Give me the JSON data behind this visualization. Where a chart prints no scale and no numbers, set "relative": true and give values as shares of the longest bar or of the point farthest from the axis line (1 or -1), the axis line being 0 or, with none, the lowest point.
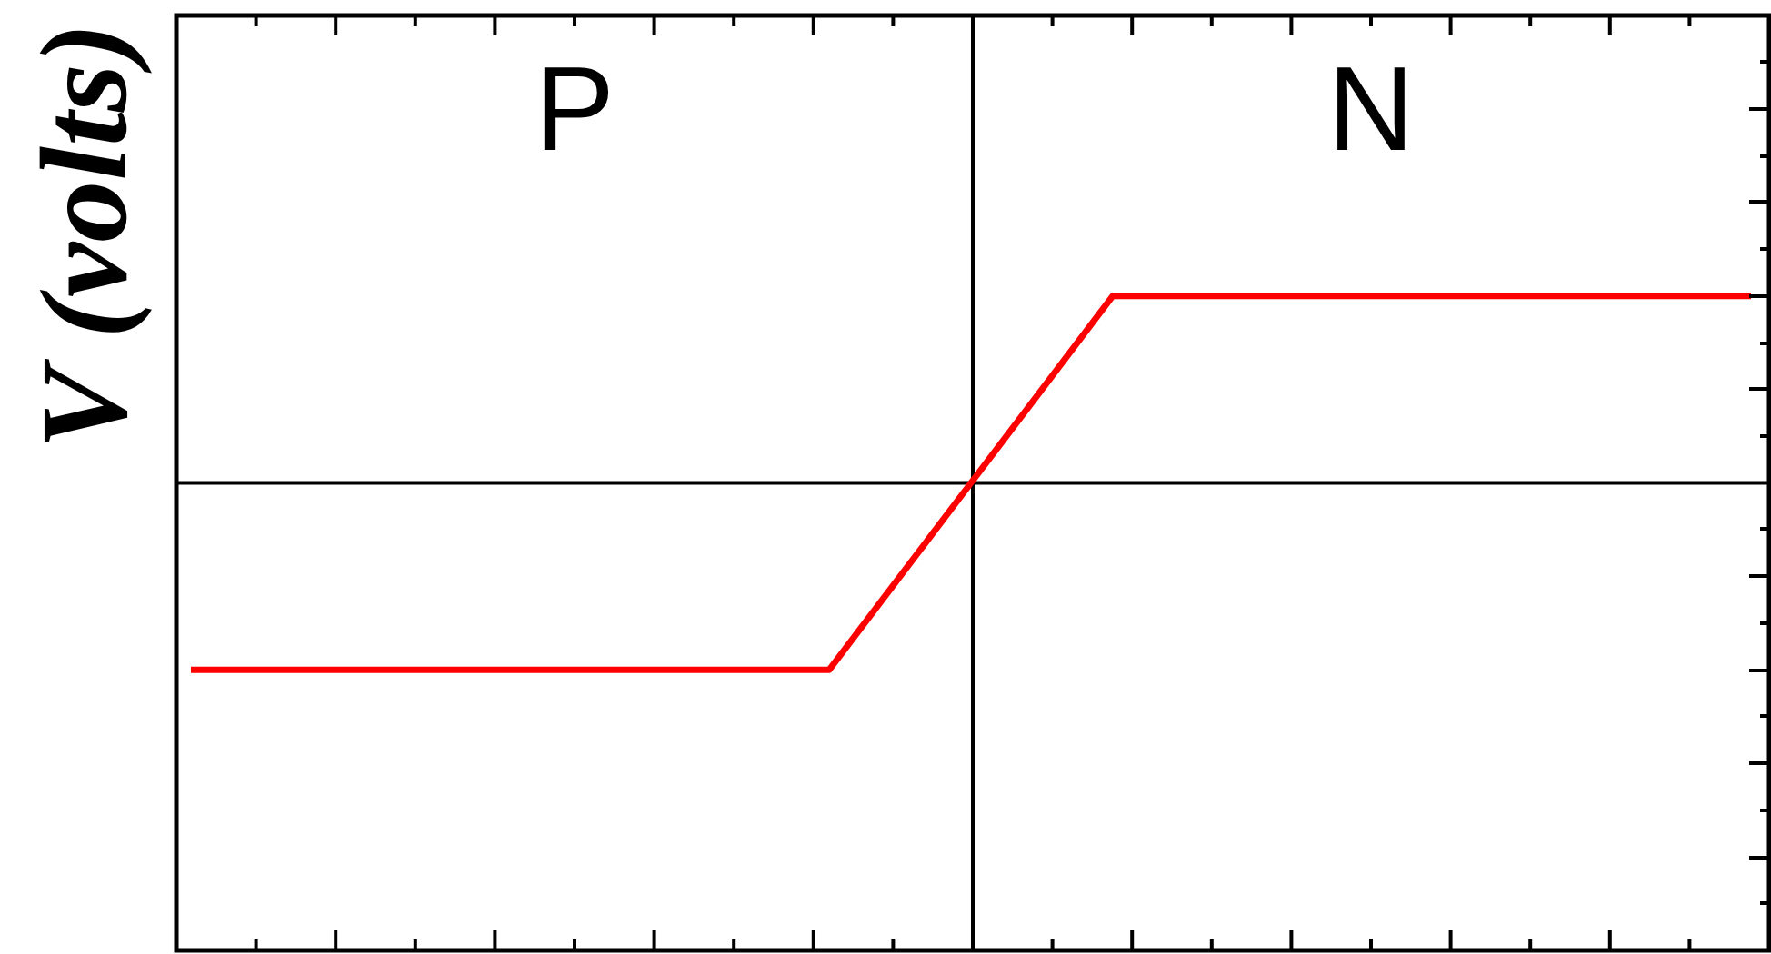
{
  "chart_data": {
    "type": "line",
    "relative": true,
    "ylabel": "V (volts)",
    "annotations": [
      "P",
      "N"
    ],
    "categories": [
      null,
      null,
      null,
      null,
      null,
      null,
      null,
      null,
      null,
      null,
      null,
      null,
      null,
      null,
      null,
      null,
      null,
      null,
      null,
      null,
      null,
      null,
      null
    ],
    "series": [
      {
        "color": "#ff0000",
        "values": [
          -1,
          -1,
          -1,
          -1,
          -1,
          -1,
          -1,
          -1,
          -1,
          -1,
          -0.5,
          0,
          0.5,
          1,
          1,
          1,
          1,
          1,
          1,
          1,
          1,
          1,
          1
        ]
      }
    ]
  }
}
